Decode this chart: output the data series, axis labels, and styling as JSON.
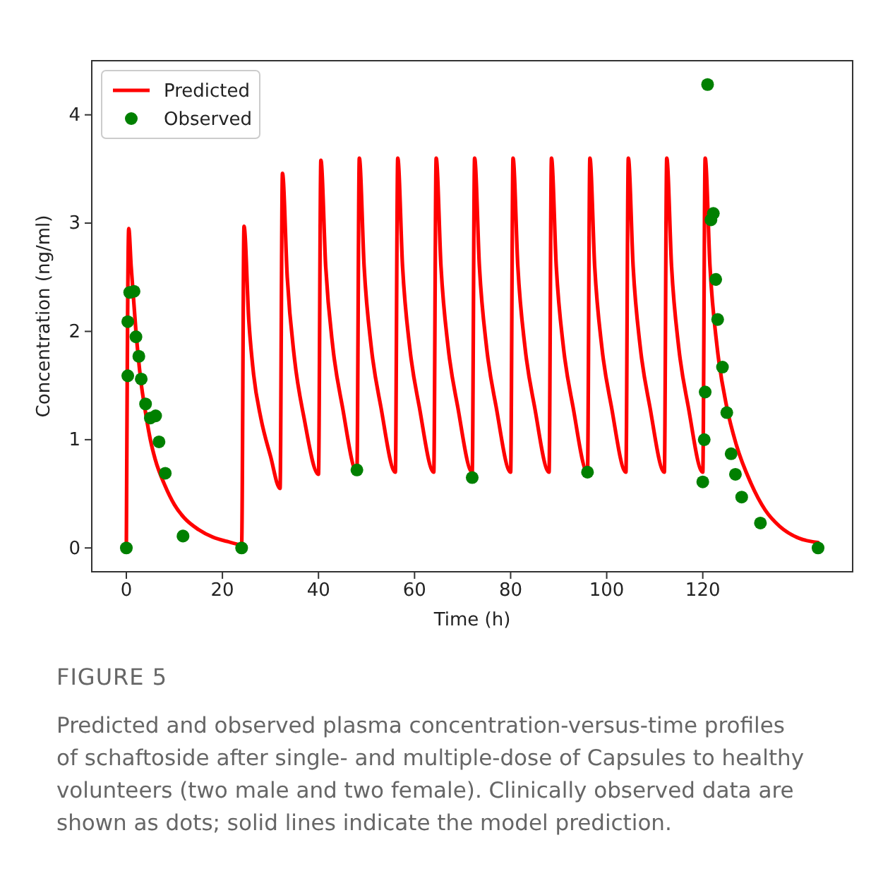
{
  "chart_data": {
    "type": "line",
    "xlabel": "Time (h)",
    "ylabel": "Concentration (ng/ml)",
    "xlim": [
      -7.2,
      151.2
    ],
    "xticks": [
      0,
      20,
      40,
      60,
      80,
      100,
      120
    ],
    "ylim": [
      -0.22,
      4.5
    ],
    "yticks": [
      0,
      1,
      2,
      3,
      4
    ],
    "grid": false,
    "legend": "top left",
    "series": [
      {
        "name": "Predicted",
        "type": "line",
        "color": "#ff0000",
        "marker": "none",
        "line_style": "solid",
        "x": [
          0,
          0.5,
          1,
          2,
          3,
          4,
          5,
          6,
          8,
          10,
          12,
          15,
          18,
          21,
          24,
          24.5,
          25.5,
          26.5,
          28,
          30,
          32,
          32.5,
          33.5,
          35,
          37,
          40,
          40.5,
          41.5,
          43,
          45,
          48,
          48.5,
          49.5,
          51,
          53,
          56,
          56.5,
          57.5,
          59,
          61,
          64,
          64.5,
          65.5,
          67,
          69,
          72,
          72.5,
          73.5,
          75,
          77,
          80,
          80.5,
          81.5,
          83,
          85,
          88,
          88.5,
          89.5,
          91,
          93,
          96,
          96.5,
          97.5,
          99,
          101,
          104,
          104.5,
          105.5,
          107,
          109,
          112,
          112.5,
          113.5,
          115,
          117,
          120,
          120.5,
          121.5,
          123,
          125,
          127,
          130,
          133,
          136,
          140,
          144
        ],
        "values": [
          0,
          2.95,
          2.6,
          2.0,
          1.55,
          1.25,
          1.0,
          0.82,
          0.58,
          0.4,
          0.28,
          0.17,
          0.1,
          0.06,
          0.03,
          2.97,
          2.1,
          1.6,
          1.2,
          0.85,
          0.55,
          3.46,
          2.5,
          1.75,
          1.2,
          0.68,
          3.58,
          2.6,
          1.85,
          1.3,
          0.7,
          3.6,
          2.6,
          1.85,
          1.3,
          0.7,
          3.6,
          2.6,
          1.85,
          1.3,
          0.7,
          3.6,
          2.6,
          1.85,
          1.3,
          0.7,
          3.6,
          2.6,
          1.85,
          1.3,
          0.7,
          3.6,
          2.6,
          1.85,
          1.3,
          0.7,
          3.6,
          2.6,
          1.85,
          1.3,
          0.7,
          3.6,
          2.6,
          1.85,
          1.3,
          0.7,
          3.6,
          2.6,
          1.85,
          1.3,
          0.7,
          3.6,
          2.6,
          1.85,
          1.3,
          0.7,
          3.6,
          2.6,
          1.85,
          1.3,
          0.95,
          0.6,
          0.35,
          0.2,
          0.09,
          0.05
        ]
      },
      {
        "name": "Observed",
        "type": "scatter",
        "color": "#008000",
        "marker": "circle",
        "x": [
          0,
          0.3,
          0.3,
          0.7,
          1.6,
          2.0,
          2.6,
          3.1,
          4.0,
          5.0,
          6.1,
          6.8,
          8.1,
          11.8,
          24,
          48,
          72,
          96,
          120,
          120.3,
          120.5,
          121,
          121.7,
          122.2,
          122.7,
          123.1,
          124.1,
          125,
          125.9,
          126.8,
          128.1,
          132,
          144
        ],
        "values": [
          0,
          1.59,
          2.09,
          2.36,
          2.37,
          1.95,
          1.77,
          1.56,
          1.33,
          1.2,
          1.22,
          0.98,
          0.69,
          0.11,
          0,
          0.72,
          0.65,
          0.7,
          0.61,
          1.0,
          1.44,
          4.28,
          3.03,
          3.09,
          2.48,
          2.11,
          1.67,
          1.25,
          0.87,
          0.68,
          0.47,
          0.23,
          0
        ]
      }
    ],
    "annotations": [
      "FIGURE 5",
      "Predicted and observed plasma concentration-versus-time profiles of schaftoside after single- and multiple-dose of Capsules to healthy volunteers (two male and two female). Clinically observed data are shown as dots; solid lines indicate the model prediction."
    ]
  }
}
